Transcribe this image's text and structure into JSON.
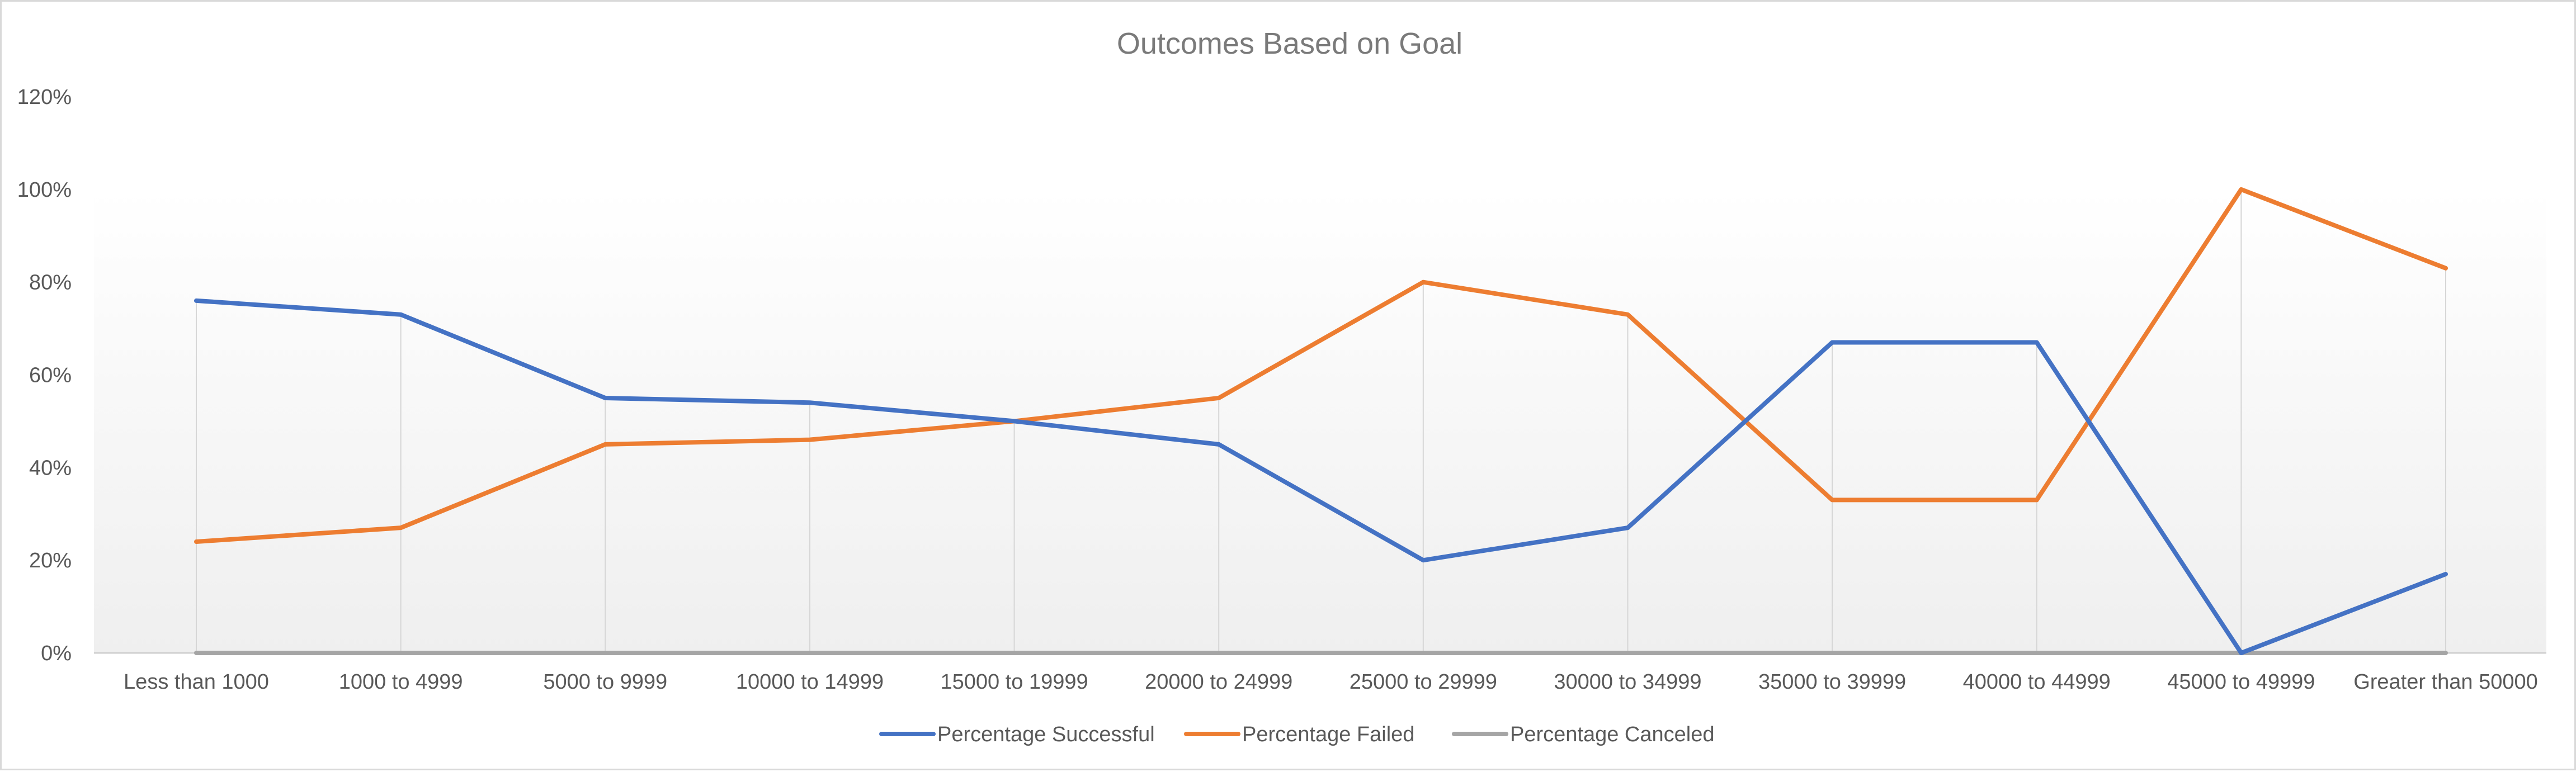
{
  "chart_data": {
    "type": "line",
    "title": "Outcomes Based on Goal",
    "xlabel": "",
    "ylabel": "",
    "categories": [
      "Less than 1000",
      "1000 to 4999",
      "5000 to 9999",
      "10000 to 14999",
      "15000 to 19999",
      "20000 to 24999",
      "25000 to 29999",
      "30000 to 34999",
      "35000 to 39999",
      "40000 to 44999",
      "45000 to 49999",
      "Greater than 50000"
    ],
    "y_ticks": [
      "0%",
      "20%",
      "40%",
      "60%",
      "80%",
      "100%",
      "120%"
    ],
    "ylim": [
      0,
      120
    ],
    "y_unit": "%",
    "grid": "vertical drop lines at categories",
    "legend_position": "bottom",
    "series": [
      {
        "name": "Percentage Successful",
        "color": "#4472C4",
        "values": [
          76,
          73,
          55,
          54,
          50,
          45,
          20,
          27,
          67,
          67,
          0,
          17
        ]
      },
      {
        "name": "Percentage Failed",
        "color": "#ED7D31",
        "values": [
          24,
          27,
          45,
          46,
          50,
          55,
          80,
          73,
          33,
          33,
          100,
          83
        ]
      },
      {
        "name": "Percentage Canceled",
        "color": "#A5A5A5",
        "values": [
          0,
          0,
          0,
          0,
          0,
          0,
          0,
          0,
          0,
          0,
          0,
          0
        ]
      }
    ]
  }
}
